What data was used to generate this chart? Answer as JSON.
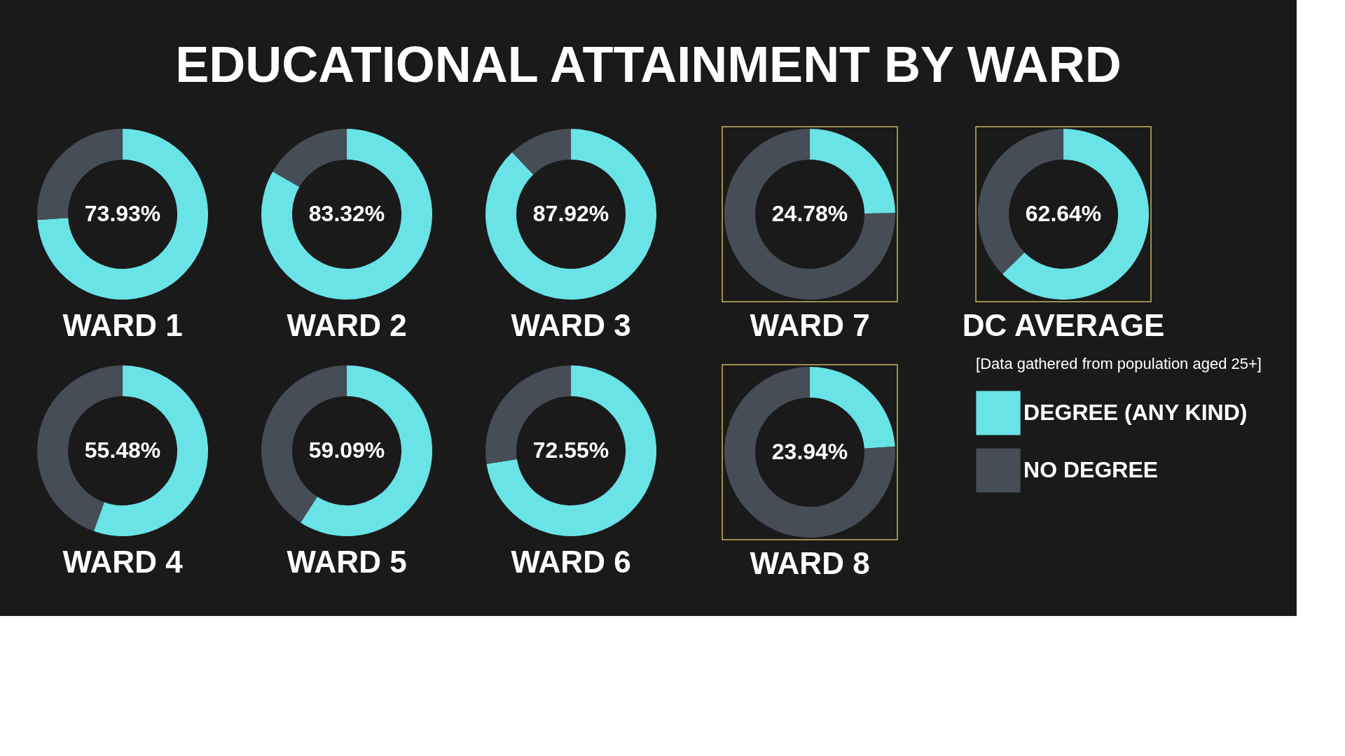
{
  "chart_data": [
    {
      "type": "other",
      "title": "EDUCATIONAL ATTAINMENT BY WARD"
    },
    {
      "type": "donut",
      "title": "WARD 1",
      "categories": [
        null,
        null
      ],
      "values": [
        73.93,
        26.07
      ],
      "colors": [
        "#69e3e6",
        "#474d56"
      ],
      "value_labels": [
        "73.93%",
        null
      ]
    },
    {
      "type": "donut",
      "title": "WARD 2",
      "categories": [
        null,
        null
      ],
      "values": [
        83.32,
        16.68
      ],
      "colors": [
        "#69e3e6",
        "#474d56"
      ],
      "value_labels": [
        "83.32%",
        null
      ]
    },
    {
      "type": "donut",
      "title": "WARD 3",
      "categories": [
        null,
        null
      ],
      "values": [
        87.92,
        12.08
      ],
      "colors": [
        "#69e3e6",
        "#474d56"
      ],
      "value_labels": [
        "87.92%",
        null
      ]
    },
    {
      "type": "donut",
      "title": "WARD 4",
      "categories": [
        null,
        null
      ],
      "values": [
        55.48,
        44.52
      ],
      "colors": [
        "#69e3e6",
        "#474d56"
      ],
      "value_labels": [
        "55.48%",
        null
      ]
    },
    {
      "type": "donut",
      "title": "WARD 5",
      "categories": [
        null,
        null
      ],
      "values": [
        59.09,
        40.91
      ],
      "colors": [
        "#69e3e6",
        "#474d56"
      ],
      "value_labels": [
        "59.09%",
        null
      ]
    },
    {
      "type": "donut",
      "title": "WARD 6",
      "categories": [
        null,
        null
      ],
      "values": [
        72.55,
        27.45
      ],
      "colors": [
        "#69e3e6",
        "#474d56"
      ],
      "value_labels": [
        "72.55%",
        null
      ]
    },
    {
      "type": "donut",
      "title": "WARD 7",
      "categories": [
        null,
        null
      ],
      "values": [
        24.78,
        75.22
      ],
      "colors": [
        "#69e3e6",
        "#474d56"
      ],
      "value_labels": [
        "24.78%",
        null
      ]
    },
    {
      "type": "donut",
      "title": "WARD 8",
      "categories": [
        null,
        null
      ],
      "values": [
        23.94,
        76.06
      ],
      "colors": [
        "#69e3e6",
        "#474d56"
      ],
      "value_labels": [
        "23.94%",
        null
      ]
    },
    {
      "type": "donut",
      "title": "DC AVERAGE",
      "categories": [
        "DEGREE (ANY KIND)",
        "NO DEGREE"
      ],
      "values": [
        62.64,
        37.36
      ],
      "colors": [
        "#69e3e6",
        "#474d56"
      ],
      "value_labels": [
        "62.64%",
        null
      ],
      "legend": "bottom",
      "annotations": [
        "[Data gathered from population aged 25+]"
      ]
    }
  ]
}
